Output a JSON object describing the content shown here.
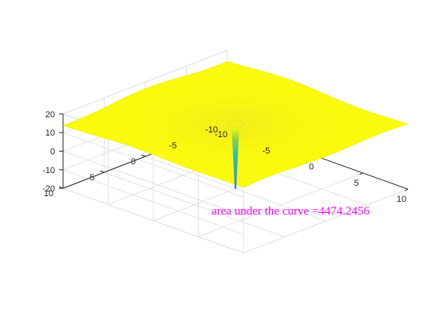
{
  "chart_data": {
    "type": "surface3d",
    "title": "",
    "xlabel": "",
    "ylabel": "",
    "zlabel": "",
    "xlim": [
      -10,
      10
    ],
    "ylim": [
      -10,
      10
    ],
    "zlim": [
      -20,
      20
    ],
    "xticks": [
      -10,
      -5,
      0,
      5,
      10
    ],
    "yticks": [
      -10,
      -5,
      0,
      5,
      10
    ],
    "zticks": [
      -20,
      -10,
      0,
      10,
      20
    ],
    "xtick_labels": [
      "-10",
      "-5",
      "0",
      "5",
      "10"
    ],
    "ytick_labels": [
      "-10",
      "-5",
      "0",
      "5",
      "10"
    ],
    "ztick_labels": [
      "-20",
      "-10",
      "0",
      "10",
      "20"
    ],
    "grid": true,
    "view": "default 3-D view (azimuth -37.5, elevation 30)",
    "colormap": "parula",
    "surface_plateau_z": 15,
    "spike_min_z": -20,
    "annotation": "area under the curve =4474.2456",
    "colors": {
      "annotation": "#ff00ff",
      "surface_high": "#f9fb0e",
      "surface_mid": "#2fc0a0",
      "surface_low": "#3e8fe8"
    }
  }
}
